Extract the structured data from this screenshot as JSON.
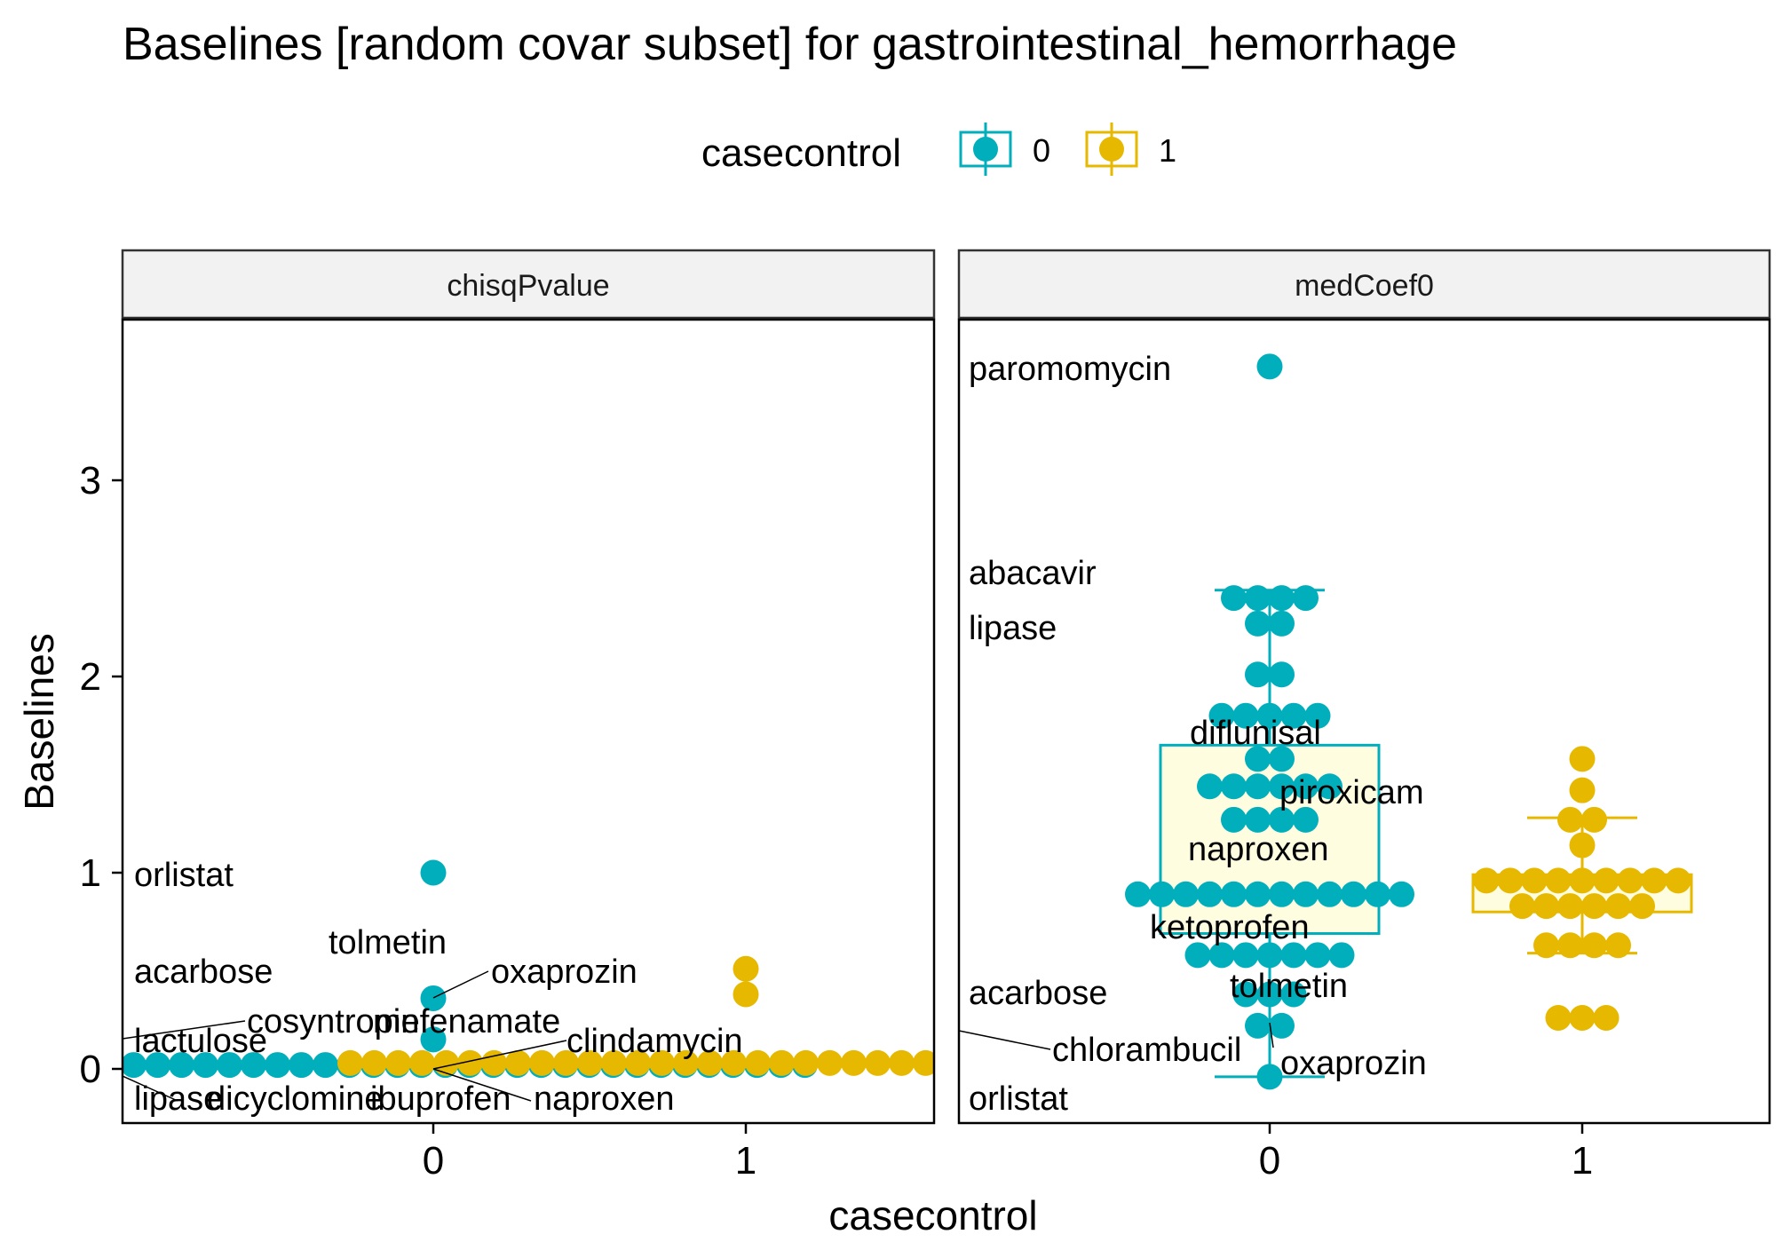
{
  "chart_data": {
    "type": "scatter",
    "title": "Baselines [random covar subset] for gastrointestinal_hemorrhage",
    "xlabel": "casecontrol",
    "ylabel": "Baselines",
    "x_categories": [
      "0",
      "1"
    ],
    "y_ticks": [
      0,
      1,
      2,
      3
    ],
    "y_range": [
      -0.28,
      3.82
    ],
    "legend": {
      "title": "casecontrol",
      "placement": "top",
      "entries": [
        {
          "label": "0",
          "color": "#00AFBB"
        },
        {
          "label": "1",
          "color": "#E7B800"
        }
      ]
    },
    "colors": {
      "0": "#00AFBB",
      "1": "#E7B800",
      "box_fill": "#FFFDE0"
    },
    "panels": [
      {
        "name": "chisqPvalue",
        "points": {
          "0": [
            1.0,
            0.36,
            0.15,
            0.02,
            0.02,
            0.02,
            0.02,
            0.02,
            0.02,
            0.02,
            0.02,
            0.02,
            0.02,
            0.02,
            0.02,
            0.02,
            0.02,
            0.02,
            0.02,
            0.02,
            0.02,
            0.02,
            0.02,
            0.02,
            0.02,
            0.02,
            0.02,
            0.02,
            0.02,
            0.02,
            0.02,
            0.02,
            0.02,
            0.02,
            0.02
          ],
          "1": [
            0.51,
            0.38,
            0.03,
            0.03,
            0.03,
            0.03,
            0.03,
            0.03,
            0.03,
            0.03,
            0.03,
            0.03,
            0.03,
            0.03,
            0.03,
            0.03,
            0.03,
            0.03,
            0.03,
            0.03,
            0.03,
            0.03,
            0.03,
            0.03,
            0.03,
            0.03,
            0.03,
            0.03,
            0.03,
            0.03,
            0.03,
            0.03,
            0.03,
            0.03,
            0.03,
            0.03
          ]
        },
        "labels": [
          "orlistat",
          "tolmetin",
          "acarbose",
          "oxaprozin",
          "cosyntropin",
          "mefenamate",
          "lactulose",
          "clindamycin",
          "lipase",
          "dicyclomine",
          "ibuprofen",
          "naproxen"
        ],
        "boxes": []
      },
      {
        "name": "medCoef0",
        "points": {
          "0": [
            3.58,
            2.4,
            2.4,
            2.4,
            2.4,
            2.27,
            2.27,
            2.01,
            2.01,
            1.8,
            1.8,
            1.8,
            1.8,
            1.8,
            1.58,
            1.58,
            1.44,
            1.44,
            1.44,
            1.44,
            1.44,
            1.44,
            1.27,
            1.27,
            1.27,
            1.27,
            0.89,
            0.89,
            0.89,
            0.89,
            0.89,
            0.89,
            0.89,
            0.89,
            0.89,
            0.89,
            0.89,
            0.89,
            0.58,
            0.58,
            0.58,
            0.58,
            0.58,
            0.58,
            0.58,
            0.38,
            0.38,
            0.38,
            0.22,
            0.22,
            -0.04
          ],
          "1": [
            1.58,
            1.42,
            1.27,
            1.27,
            1.14,
            0.96,
            0.96,
            0.96,
            0.96,
            0.96,
            0.96,
            0.96,
            0.96,
            0.96,
            0.83,
            0.83,
            0.83,
            0.83,
            0.83,
            0.83,
            0.63,
            0.63,
            0.63,
            0.63,
            0.26,
            0.26,
            0.26
          ]
        },
        "labels": [
          "paromomycin",
          "abacavir",
          "lipase",
          "diflunisal",
          "piroxicam",
          "naproxen",
          "ketoprofen",
          "tolmetin",
          "acarbose",
          "chlorambucil",
          "oxaprozin",
          "orlistat"
        ],
        "boxes": [
          {
            "group": "0",
            "whisker_low": -0.04,
            "q1": 0.69,
            "median": 0.9,
            "q3": 1.65,
            "whisker_high": 2.44
          },
          {
            "group": "1",
            "whisker_low": 0.59,
            "q1": 0.8,
            "median": 0.94,
            "q3": 0.99,
            "whisker_high": 1.28
          }
        ]
      }
    ]
  }
}
